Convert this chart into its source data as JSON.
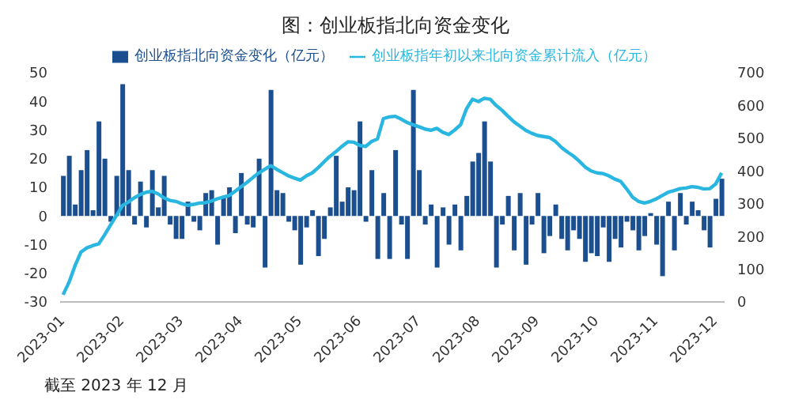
{
  "chart_data": {
    "type": "bar",
    "title": "图：创业板指北向资金变化",
    "annotations": [
      "截至 2023 年 12 月"
    ],
    "legend": "top",
    "grid": false,
    "categories": [
      "2023-01",
      null,
      null,
      null,
      null,
      null,
      null,
      null,
      null,
      null,
      "2023-02",
      null,
      null,
      null,
      null,
      null,
      null,
      null,
      null,
      null,
      "2023-03",
      null,
      null,
      null,
      null,
      null,
      null,
      null,
      null,
      null,
      "2023-04",
      null,
      null,
      null,
      null,
      null,
      null,
      null,
      null,
      null,
      "2023-05",
      null,
      null,
      null,
      null,
      null,
      null,
      null,
      null,
      null,
      "2023-06",
      null,
      null,
      null,
      null,
      null,
      null,
      null,
      null,
      null,
      "2023-07",
      null,
      null,
      null,
      null,
      null,
      null,
      null,
      null,
      null,
      "2023-08",
      null,
      null,
      null,
      null,
      null,
      null,
      null,
      null,
      null,
      "2023-09",
      null,
      null,
      null,
      null,
      null,
      null,
      null,
      null,
      null,
      "2023-10",
      null,
      null,
      null,
      null,
      null,
      null,
      null,
      null,
      null,
      "2023-11",
      null,
      null,
      null,
      null,
      null,
      null,
      null,
      null,
      null,
      "2023-12",
      null
    ],
    "ylim": [
      -30,
      50
    ],
    "yticks": [
      -30,
      -20,
      -10,
      0,
      10,
      20,
      30,
      40,
      50
    ],
    "y2lim": [
      0,
      700
    ],
    "y2ticks": [
      0,
      100,
      200,
      300,
      400,
      500,
      600,
      700
    ],
    "series": [
      {
        "name": "创业板指北向资金变化（亿元）",
        "color": "#1b4f8f",
        "values": [
          14,
          21,
          4,
          16,
          23,
          2,
          33,
          20,
          -2,
          14,
          46,
          16,
          -3,
          12,
          -4,
          16,
          3,
          14,
          -3,
          -8,
          -8,
          5,
          -2,
          -5,
          8,
          9,
          -10,
          7,
          10,
          -6,
          15,
          -3,
          -4,
          20,
          -18,
          44,
          9,
          8,
          -2,
          -5,
          -17,
          -4,
          2,
          -14,
          -8,
          3,
          21,
          5,
          10,
          9,
          33,
          -2,
          16,
          -15,
          8,
          -15,
          23,
          -3,
          -15,
          44,
          16,
          -3,
          4,
          -18,
          3,
          -10,
          4,
          -12,
          7,
          19,
          22,
          33,
          19,
          -18,
          -3,
          7,
          -12,
          8,
          -17,
          -3,
          8,
          -13,
          -7,
          4,
          -8,
          -12,
          -5,
          -8,
          -16,
          -13,
          -14,
          -4,
          -16,
          -8,
          -11,
          -2,
          -5,
          -12,
          -7,
          1,
          -10,
          -21,
          5,
          -12,
          8,
          -3,
          5,
          2,
          -5,
          -11,
          6,
          13
        ]
      },
      {
        "name": "创业板指年初以来北向资金累计流入（亿元）",
        "type": "line",
        "axis": "y2",
        "color": "#29b6e0",
        "values": [
          22,
          60,
          110,
          152,
          165,
          172,
          177,
          205,
          235,
          264,
          294,
          305,
          318,
          328,
          335,
          338,
          330,
          318,
          310,
          307,
          300,
          295,
          298,
          302,
          303,
          308,
          315,
          320,
          325,
          338,
          352,
          365,
          380,
          394,
          405,
          416,
          405,
          395,
          385,
          378,
          372,
          385,
          394,
          410,
          428,
          445,
          459,
          475,
          489,
          488,
          478,
          475,
          490,
          498,
          560,
          565,
          567,
          558,
          548,
          541,
          535,
          528,
          524,
          530,
          518,
          511,
          525,
          541,
          590,
          619,
          612,
          622,
          619,
          600,
          585,
          567,
          550,
          537,
          524,
          515,
          508,
          505,
          502,
          490,
          472,
          458,
          446,
          430,
          412,
          400,
          394,
          392,
          385,
          375,
          368,
          345,
          320,
          307,
          302,
          307,
          315,
          325,
          335,
          340,
          346,
          348,
          352,
          350,
          345,
          346,
          360,
          394
        ]
      }
    ]
  }
}
